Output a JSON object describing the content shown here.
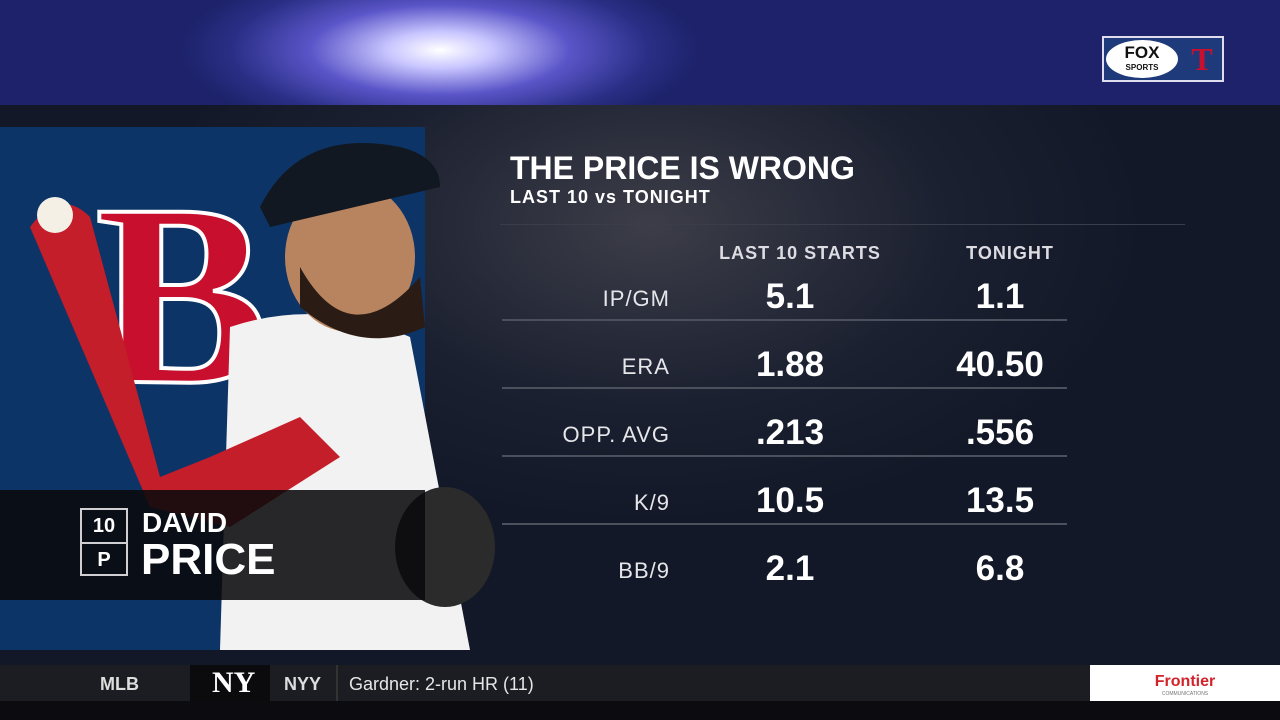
{
  "network": {
    "logo": "FOX",
    "logo_sub": "SPORTS",
    "team_logo": "T"
  },
  "graphic": {
    "title": "THE PRICE IS WRONG",
    "subtitle": "LAST 10 vs TONIGHT",
    "team_letter": "B",
    "table": {
      "columns": [
        "LAST 10 STARTS",
        "TONIGHT"
      ],
      "rows": [
        [
          "IP/GM",
          "5.1",
          "1.1"
        ],
        [
          "ERA",
          "1.88",
          "40.50"
        ],
        [
          "OPP. AVG",
          ".213",
          ".556"
        ],
        [
          "K/9",
          "10.5",
          "13.5"
        ],
        [
          "BB/9",
          "2.1",
          "6.8"
        ]
      ]
    }
  },
  "player": {
    "number": "10",
    "position": "P",
    "first_name": "DAVID",
    "last_name": "PRICE"
  },
  "ticker": {
    "league": "MLB",
    "team_logo": "NY",
    "team": "NYY",
    "headline": "Gardner: 2-run HR (11)",
    "sponsor": "Frontier",
    "sponsor_sub": "COMMUNICATIONS"
  }
}
